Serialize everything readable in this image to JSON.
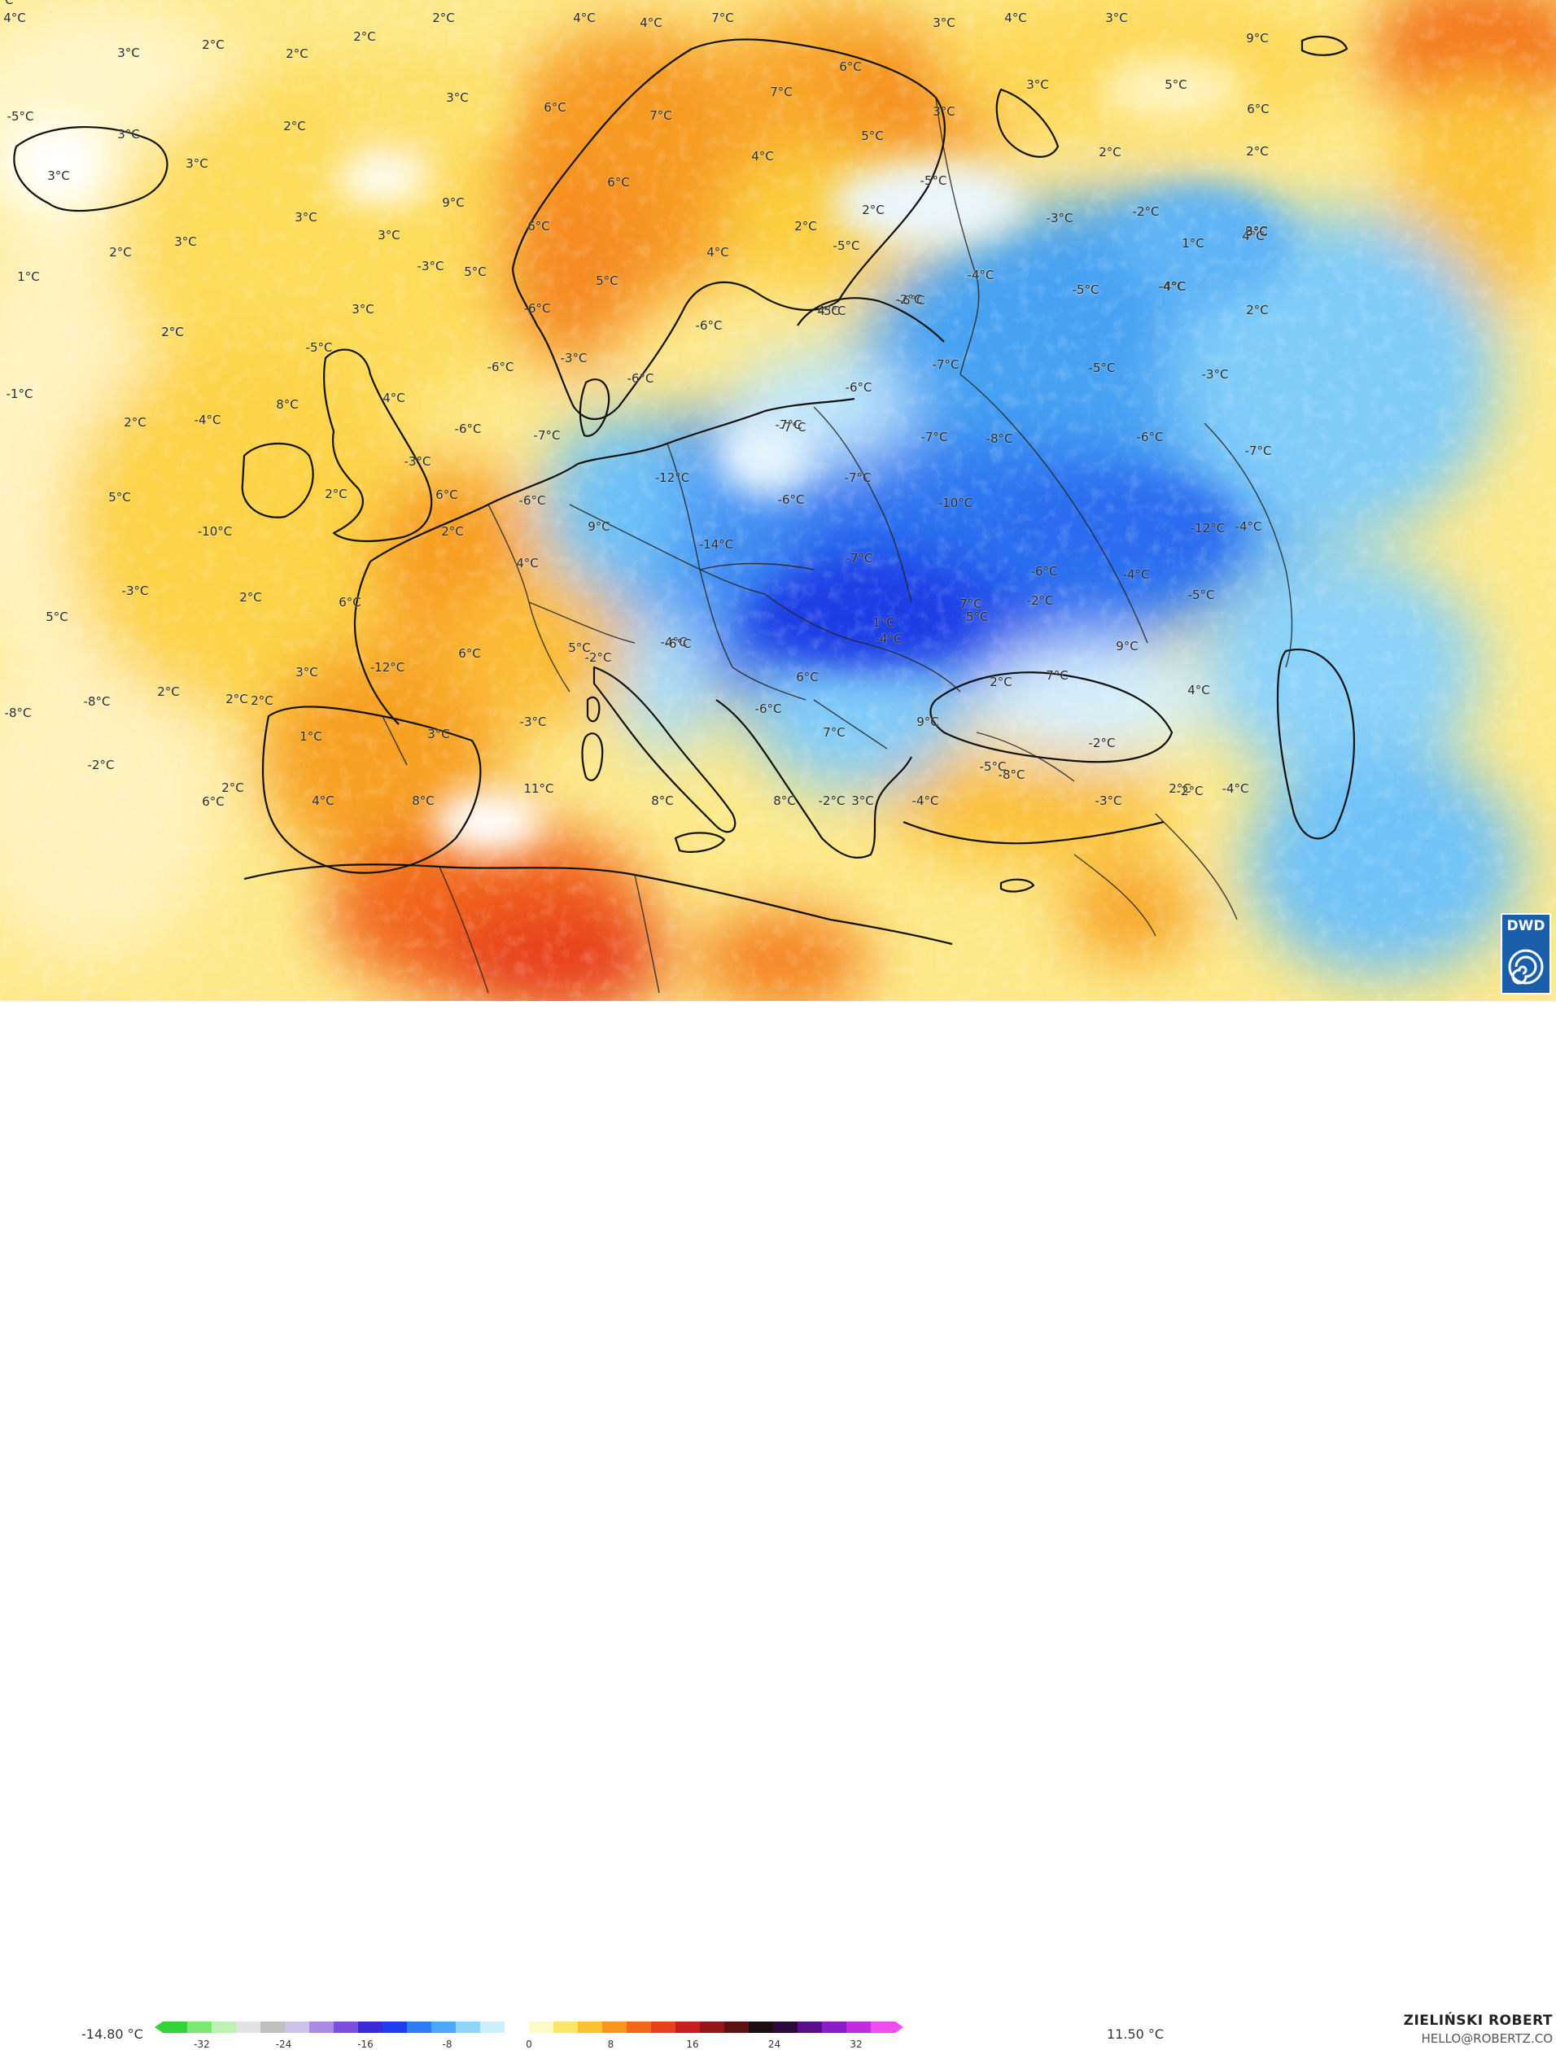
{
  "scale": {
    "min_label": "-14.80 °C",
    "max_label": "11.50 °C",
    "ticks": [
      "-32",
      "-24",
      "-16",
      "-8",
      "0",
      "8",
      "16",
      "24",
      "32"
    ],
    "colors": [
      "#33d43a",
      "#7be870",
      "#bdf2b2",
      "#e2e2e2",
      "#bfbfbf",
      "#cfc2ea",
      "#ab8ae6",
      "#7d4fe0",
      "#3b2ad8",
      "#1f3ef0",
      "#2f7cf4",
      "#4aa8f6",
      "#8fd4fa",
      "#cdeefc",
      "#ffffff",
      "#fff8c8",
      "#fde56a",
      "#fcc22e",
      "#f7951c",
      "#f26718",
      "#e8401a",
      "#c81e1e",
      "#96171b",
      "#5a1215",
      "#1c0e12",
      "#2c0b3c",
      "#5a0f8e",
      "#8c1bc8",
      "#c22ce0",
      "#ee4cf0"
    ]
  },
  "credit": {
    "author": "ZIELIŃSKI ROBERT",
    "email": "HELLO@ROBERTZ.CO",
    "logo": "DWD"
  },
  "labels": [
    "4°C",
    "2°C",
    "4°C",
    "4°C",
    "7°C",
    "3°C",
    "4°C",
    "3°C",
    "9°C",
    "3°C",
    "2°C",
    "2°C",
    "2°C",
    "6°C",
    "3°C",
    "5°C",
    "3°C",
    "3°C",
    "7°C",
    "6°C",
    "7°C",
    "3°C",
    "6°C",
    "3°C",
    "-5°C",
    "5°C",
    "2°C",
    "3°C",
    "2°C",
    "4°C",
    "2°C",
    "6°C",
    "9°C",
    "6°C",
    "-5°C",
    "2°C",
    "-3°C",
    "-2°C",
    "1°C",
    "3°C",
    "2°C",
    "3°C",
    "3°C",
    "9°C",
    "2°C",
    "4°C",
    "4°C",
    "-5°C",
    "3°C",
    "1°C",
    "2°C",
    "5°C",
    "5°C",
    "-3°C",
    "-4°C",
    "-5°C",
    "-4°C",
    "-6°C",
    "-5°C",
    "-4°C",
    "-5°C",
    "-4°C",
    "3°C",
    "-6°C",
    "2°C",
    "3°C",
    "-5°C",
    "4°C",
    "-2°C",
    "2°C",
    "-6°C",
    "-6°C",
    "-7°C",
    "-6°C",
    "-5°C",
    "-3°C",
    "-3°C",
    "-1°C",
    "8°C",
    "4°C",
    "-6°C",
    "-7°C",
    "-7°C",
    "-7°C",
    "-8°C",
    "-6°C",
    "-6°C",
    "2°C",
    "-4°C",
    "-3°C",
    "-7°C",
    "-7°C",
    "-12°C",
    "-7°C",
    "5°C",
    "2°C",
    "6°C",
    "-6°C",
    "-6°C",
    "-10°C",
    "-10°C",
    "2°C",
    "9°C",
    "-14°C",
    "-12°C",
    "-4°C",
    "4°C",
    "-7°C",
    "-6°C",
    "-4°C",
    "-5°C",
    "-3°C",
    "2°C",
    "6°C",
    "9°C",
    "-2°C",
    "5°C",
    "1°C",
    "-4°C",
    "7°C",
    "-5°C",
    "6°C",
    "5°C",
    "-2°C",
    "-4°C",
    "-6°C",
    "-12°C",
    "3°C",
    "6°C",
    "7°C",
    "-8°C",
    "2°C",
    "2°C",
    "2°C",
    "-3°C",
    "2°C",
    "4°C",
    "-6°C",
    "-8°C",
    "1°C",
    "3°C",
    "9°C",
    "7°C",
    "-2°C",
    "-5°C",
    "-8°C",
    "2°C",
    "-4°C",
    "-2°C",
    "2°C",
    "4°C",
    "8°C",
    "11°C",
    "8°C",
    "8°C",
    "-2°C",
    "3°C",
    "-4°C",
    "6°C",
    "-3°C",
    "-2°C",
    "-7°C"
  ]
}
